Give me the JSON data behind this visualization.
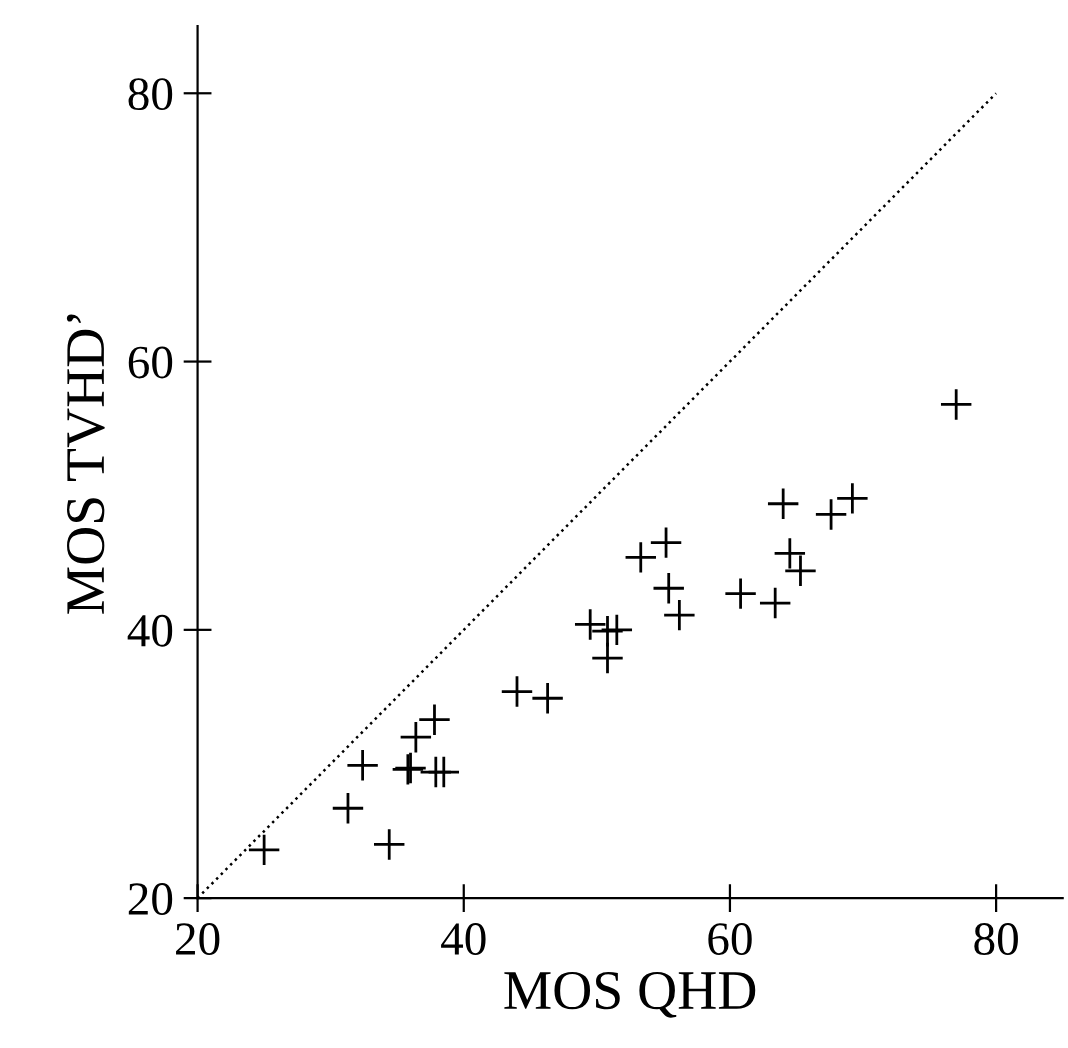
{
  "chart_data": {
    "type": "scatter",
    "xlabel": "MOS QHD",
    "ylabel": "MOS TVHD’",
    "xlim": [
      20,
      85
    ],
    "ylim": [
      20,
      85
    ],
    "xticks": [
      20,
      40,
      60,
      80
    ],
    "yticks": [
      20,
      40,
      60,
      80
    ],
    "grid": false,
    "legend": false,
    "series": [
      {
        "color": "#000000",
        "marker": "cross",
        "x": [
          25.0,
          31.3,
          32.4,
          34.4,
          35.8,
          36.0,
          36.4,
          37.8,
          37.9,
          38.5,
          44.0,
          46.3,
          49.5,
          50.8,
          51.5,
          50.8,
          53.3,
          55.2,
          55.4,
          56.2,
          60.8,
          63.4,
          64.0,
          64.5,
          65.3,
          67.6,
          69.2,
          77.0
        ],
        "values": [
          23.6,
          26.7,
          29.9,
          24.0,
          29.6,
          29.7,
          32.0,
          33.3,
          29.4,
          29.4,
          35.4,
          34.9,
          40.4,
          39.9,
          40.0,
          37.9,
          45.4,
          46.5,
          43.1,
          41.1,
          42.7,
          42.0,
          49.4,
          45.7,
          44.4,
          48.6,
          49.8,
          56.8
        ]
      },
      {
        "type": "line",
        "color": "#000000",
        "line_style": "dotted",
        "x": [
          20,
          80
        ],
        "values": [
          20,
          80
        ]
      }
    ]
  }
}
